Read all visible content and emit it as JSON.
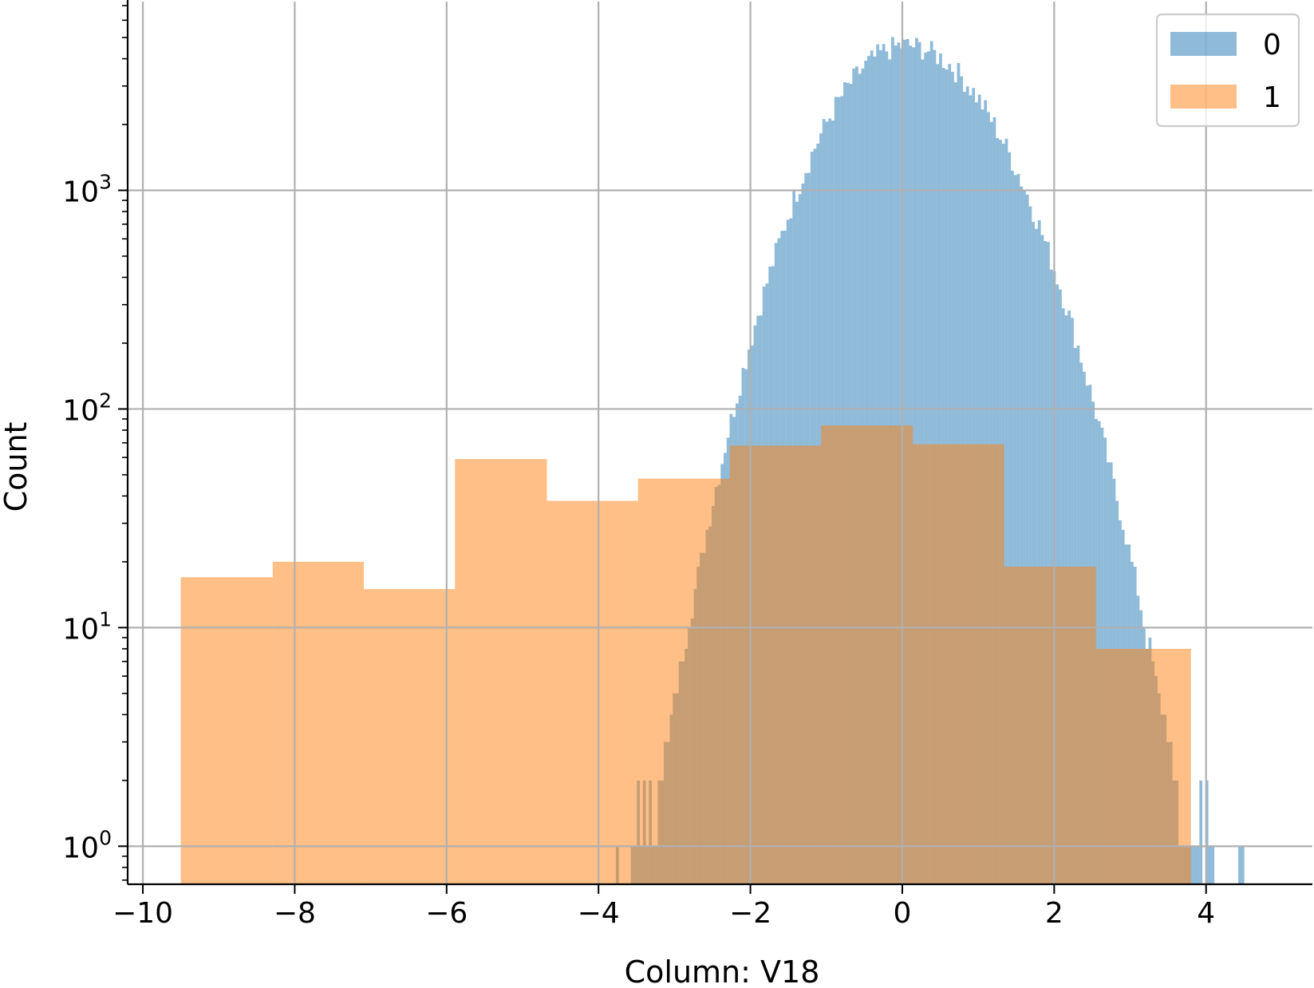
{
  "chart_data": {
    "type": "histogram",
    "xlabel": "Column: V18",
    "ylabel": "Count",
    "xlim": [
      -10.2,
      5.4
    ],
    "ylim": [
      0.67,
      7300
    ],
    "yscale": "log",
    "grid": true,
    "legend_position": "top-right",
    "x_ticks": [
      {
        "value": -10,
        "label": "−10"
      },
      {
        "value": -8,
        "label": "−8"
      },
      {
        "value": -6,
        "label": "−6"
      },
      {
        "value": -4,
        "label": "−4"
      },
      {
        "value": -2,
        "label": "−2"
      },
      {
        "value": 0,
        "label": "0"
      },
      {
        "value": 2,
        "label": "2"
      },
      {
        "value": 4,
        "label": "4"
      }
    ],
    "y_ticks": [
      {
        "value": 1,
        "base": "10",
        "exp": "0"
      },
      {
        "value": 10,
        "base": "10",
        "exp": "1"
      },
      {
        "value": 100,
        "base": "10",
        "exp": "2"
      },
      {
        "value": 1000,
        "base": "10",
        "exp": "3"
      }
    ],
    "series": [
      {
        "name": "0",
        "color": "#1f77b4",
        "opacity": 0.5,
        "profile": {
          "range": [
            -5.15,
            4.7
          ],
          "peak_x": 0.05,
          "peak_count": 4600,
          "sigma_left": 0.82,
          "sigma_right": 0.9,
          "bins": 250
        }
      },
      {
        "name": "1",
        "color": "#ff7f0e",
        "opacity": 0.5,
        "edges": [
          -9.5,
          -8.29,
          -7.09,
          -5.89,
          -4.68,
          -3.48,
          -2.27,
          -1.07,
          0.14,
          1.34,
          2.55,
          3.8
        ],
        "values": [
          17,
          20,
          15,
          59,
          38,
          48,
          68,
          84,
          69,
          19,
          8
        ]
      }
    ]
  }
}
